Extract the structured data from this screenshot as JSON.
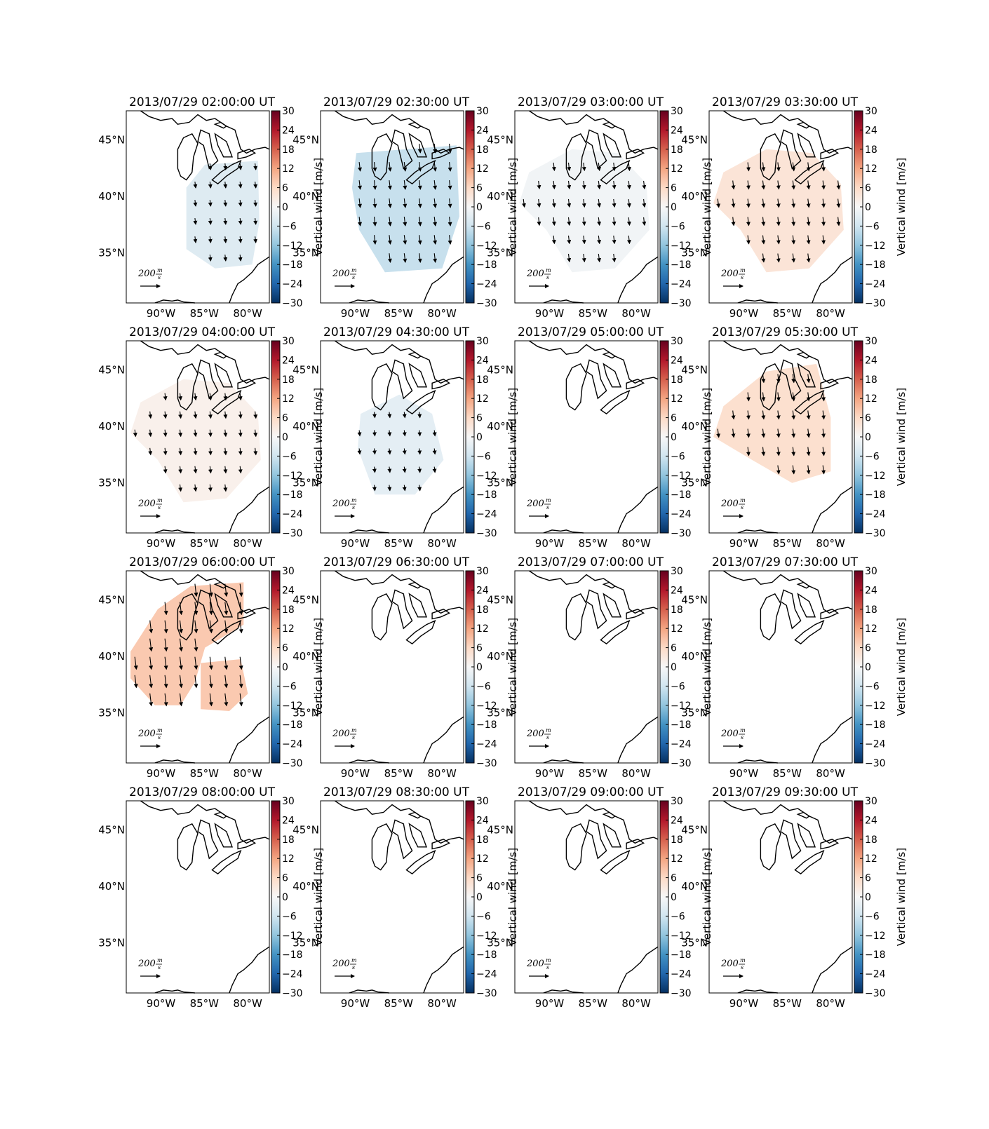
{
  "figure": {
    "colorbar": {
      "label": "Vertical wind [m/s]",
      "ticks": [
        "30",
        "24",
        "18",
        "12",
        "6",
        "0",
        "−6",
        "−12",
        "−18",
        "−24",
        "−30"
      ],
      "range": [
        -30,
        30
      ],
      "colors": [
        "#053061",
        "#2166ac",
        "#4393c3",
        "#92c5de",
        "#d1e5f0",
        "#f7f7f7",
        "#fddbc7",
        "#f4a582",
        "#d6604d",
        "#b2182b",
        "#67001f"
      ]
    },
    "lat_labels": [
      "45°N",
      "40°N",
      "35°N"
    ],
    "lon_labels": [
      "90°W",
      "85°W",
      "80°W"
    ],
    "map_extent": {
      "lon": [
        -94,
        -77.5
      ],
      "lat": [
        30.5,
        47.5
      ]
    },
    "reference_arrow": {
      "value": "200",
      "unit_num": "m",
      "unit_den": "s"
    },
    "panels": [
      {
        "title": "2013/07/29 02:00:00 UT",
        "field_value": -4,
        "region": "east",
        "arrow_len": 0.55
      },
      {
        "title": "2013/07/29 02:30:00 UT",
        "field_value": -7,
        "region": "center",
        "arrow_len": 0.8
      },
      {
        "title": "2013/07/29 03:00:00 UT",
        "field_value": -1,
        "region": "wide",
        "arrow_len": 0.7
      },
      {
        "title": "2013/07/29 03:30:00 UT",
        "field_value": 4,
        "region": "wide",
        "arrow_len": 0.75
      },
      {
        "title": "2013/07/29 04:00:00 UT",
        "field_value": 1.5,
        "region": "wide",
        "arrow_len": 0.6
      },
      {
        "title": "2013/07/29 04:30:00 UT",
        "field_value": -3,
        "region": "center_sm",
        "arrow_len": 0.5
      },
      {
        "title": "2013/07/29 05:00:00 UT",
        "field_value": null,
        "region": "none",
        "arrow_len": 0
      },
      {
        "title": "2013/07/29 05:30:00 UT",
        "field_value": 5,
        "region": "wide_n",
        "arrow_len": 0.75
      },
      {
        "title": "2013/07/29 06:00:00 UT",
        "field_value": 8,
        "region": "west_two",
        "arrow_len": 1.1
      },
      {
        "title": "2013/07/29 06:30:00 UT",
        "field_value": null,
        "region": "none",
        "arrow_len": 0
      },
      {
        "title": "2013/07/29 07:00:00 UT",
        "field_value": null,
        "region": "none",
        "arrow_len": 0
      },
      {
        "title": "2013/07/29 07:30:00 UT",
        "field_value": null,
        "region": "none",
        "arrow_len": 0
      },
      {
        "title": "2013/07/29 08:00:00 UT",
        "field_value": null,
        "region": "none",
        "arrow_len": 0
      },
      {
        "title": "2013/07/29 08:30:00 UT",
        "field_value": null,
        "region": "none",
        "arrow_len": 0
      },
      {
        "title": "2013/07/29 09:00:00 UT",
        "field_value": null,
        "region": "none",
        "arrow_len": 0
      },
      {
        "title": "2013/07/29 09:30:00 UT",
        "field_value": null,
        "region": "none",
        "arrow_len": 0
      }
    ]
  }
}
